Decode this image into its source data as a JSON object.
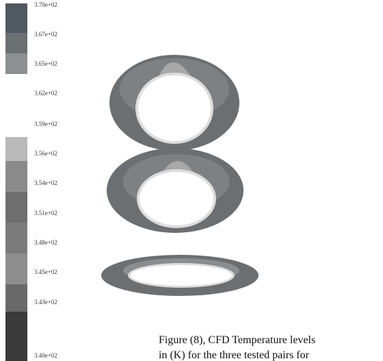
{
  "colorbar": {
    "labels": [
      "3.70e+02",
      "3.67e+02",
      "3.65e+02",
      "3.62e+02",
      "3.59e+02",
      "3.56e+02",
      "3.54e+02",
      "3.51e+02",
      "3.48e+02",
      "3.45e+02",
      "3.43e+02",
      "3.40e+02"
    ]
  },
  "caption": {
    "lines": [
      "Figure (8), CFD Temperature levels",
      "in (K) for the three tested pairs for"
    ]
  }
}
